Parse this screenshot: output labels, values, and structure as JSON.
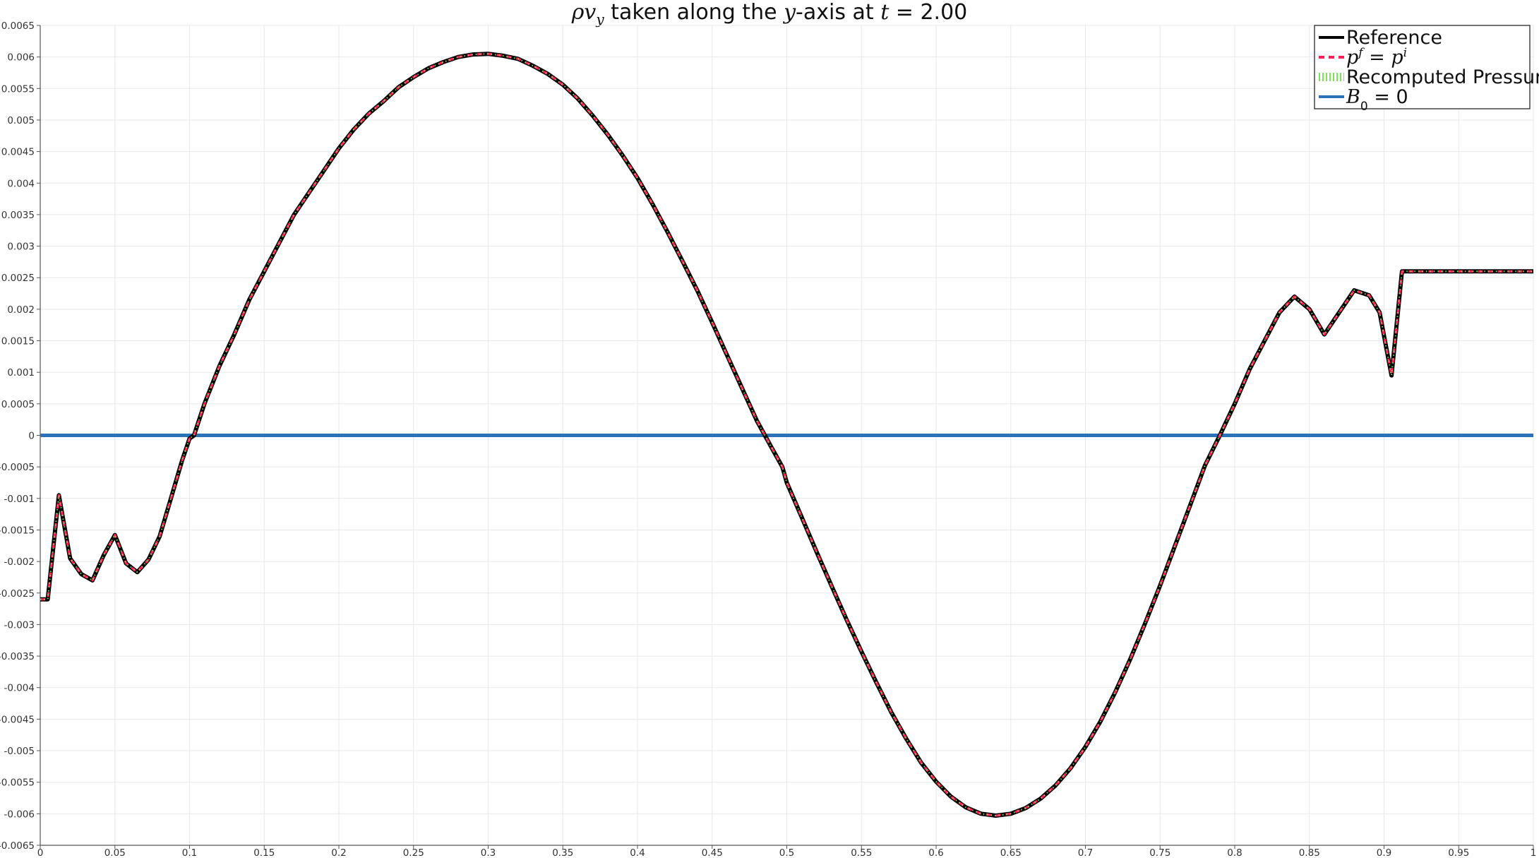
{
  "chart_data": {
    "type": "line",
    "title_parts": [
      "ρv",
      "y",
      " taken along the ",
      "y",
      "-axis at ",
      "t",
      " = 2.00"
    ],
    "xlim": [
      0,
      1
    ],
    "ylim": [
      -0.0065,
      0.0065
    ],
    "x_ticks": [
      0,
      0.05,
      0.1,
      0.15,
      0.2,
      0.25,
      0.3,
      0.35,
      0.4,
      0.45,
      0.5,
      0.55,
      0.6,
      0.65,
      0.7,
      0.75,
      0.8,
      0.85,
      0.9,
      0.95,
      1
    ],
    "y_ticks": [
      0.0065,
      0.006,
      0.0055,
      0.005,
      0.0045,
      0.004,
      0.0035,
      0.003,
      0.0025,
      0.002,
      0.0015,
      0.001,
      0.0005,
      0,
      -0.0005,
      -0.001,
      -0.0015,
      -0.002,
      -0.0025,
      -0.003,
      -0.0035,
      -0.004,
      -0.0045,
      -0.005,
      -0.0055,
      -0.006,
      -0.0065
    ],
    "grid": true,
    "legend_position": "top-right",
    "x": [
      0,
      0.005,
      0.0125,
      0.02,
      0.0275,
      0.035,
      0.0425,
      0.05,
      0.0575,
      0.065,
      0.0725,
      0.08,
      0.0875,
      0.095,
      0.1,
      0.103,
      0.11,
      0.12,
      0.13,
      0.14,
      0.15,
      0.16,
      0.17,
      0.18,
      0.19,
      0.2,
      0.21,
      0.22,
      0.23,
      0.24,
      0.25,
      0.26,
      0.27,
      0.28,
      0.29,
      0.3,
      0.31,
      0.32,
      0.33,
      0.34,
      0.35,
      0.36,
      0.37,
      0.38,
      0.39,
      0.4,
      0.41,
      0.42,
      0.43,
      0.44,
      0.45,
      0.46,
      0.47,
      0.48,
      0.49,
      0.497,
      0.5,
      0.51,
      0.52,
      0.53,
      0.54,
      0.55,
      0.56,
      0.57,
      0.58,
      0.59,
      0.6,
      0.61,
      0.62,
      0.63,
      0.64,
      0.65,
      0.66,
      0.67,
      0.68,
      0.69,
      0.7,
      0.71,
      0.72,
      0.73,
      0.74,
      0.75,
      0.76,
      0.77,
      0.78,
      0.79,
      0.8,
      0.81,
      0.82,
      0.83,
      0.84,
      0.85,
      0.86,
      0.87,
      0.88,
      0.89,
      0.897,
      0.905,
      0.912,
      0.92,
      0.927,
      0.935,
      0.942,
      0.95,
      0.957,
      0.965,
      0.972,
      0.98,
      0.987,
      0.995,
      1
    ],
    "series": [
      {
        "name": "Reference",
        "color": "#000000",
        "style": "solid",
        "values": [
          -0.0026,
          -0.0026,
          -0.00095,
          -0.00195,
          -0.0022,
          -0.0023,
          -0.0019,
          -0.00158,
          -0.00203,
          -0.00217,
          -0.00197,
          -0.0016,
          -0.001,
          -0.0004,
          -5e-05,
          0.0,
          0.0005,
          0.0011,
          0.0016,
          0.00215,
          0.0026,
          0.00305,
          0.0035,
          0.00385,
          0.0042,
          0.00455,
          0.00485,
          0.0051,
          0.0053,
          0.00552,
          0.00568,
          0.00582,
          0.00592,
          0.006,
          0.00604,
          0.00605,
          0.00602,
          0.00597,
          0.00586,
          0.00573,
          0.00556,
          0.00534,
          0.00507,
          0.00477,
          0.00444,
          0.00408,
          0.00367,
          0.00323,
          0.00277,
          0.0023,
          0.00179,
          0.00127,
          0.00075,
          0.00023,
          -0.0002,
          -0.0005,
          -0.00075,
          -0.0013,
          -0.00185,
          -0.00239,
          -0.00292,
          -0.00343,
          -0.00392,
          -0.00439,
          -0.00481,
          -0.00519,
          -0.00549,
          -0.00573,
          -0.0059,
          -0.006,
          -0.00603,
          -0.006,
          -0.00591,
          -0.00576,
          -0.00555,
          -0.00528,
          -0.00494,
          -0.00454,
          -0.00407,
          -0.00355,
          -0.00298,
          -0.00238,
          -0.00175,
          -0.00112,
          -0.00048,
          0.0,
          0.0005,
          0.00105,
          0.0015,
          0.00195,
          0.0022,
          0.002,
          0.0016,
          0.00195,
          0.0023,
          0.00222,
          0.00195,
          0.00095,
          0.0026,
          0.0026,
          0.0026,
          0.0026,
          0.0026,
          0.0026,
          0.0026,
          0.0026,
          0.0026,
          0.0026,
          0.0026,
          0.0026,
          0.0026
        ]
      },
      {
        "name": "p^f = p^i",
        "color": "#ff1f5a",
        "style": "dashed",
        "same_as": "Reference"
      },
      {
        "name": "Recomputed Pressure",
        "color": "#7fe05a",
        "style": "dotted",
        "same_as": "Reference"
      },
      {
        "name": "B_0 = 0",
        "color": "#2b73b8",
        "style": "solid",
        "constant": 0
      }
    ],
    "legend": [
      {
        "label": "Reference",
        "color": "#000000",
        "style": "solid"
      },
      {
        "label_main": "p",
        "label_sup": "f",
        "label_mid": " = p",
        "label_sup2": "i",
        "color": "#ff1f5a",
        "style": "dashed"
      },
      {
        "label": "Recomputed Pressure",
        "color": "#7fe05a",
        "style": "dotted"
      },
      {
        "label_main": "B",
        "label_sub": "0",
        "label_tail": " = 0",
        "color": "#2b73b8",
        "style": "solid"
      }
    ]
  }
}
